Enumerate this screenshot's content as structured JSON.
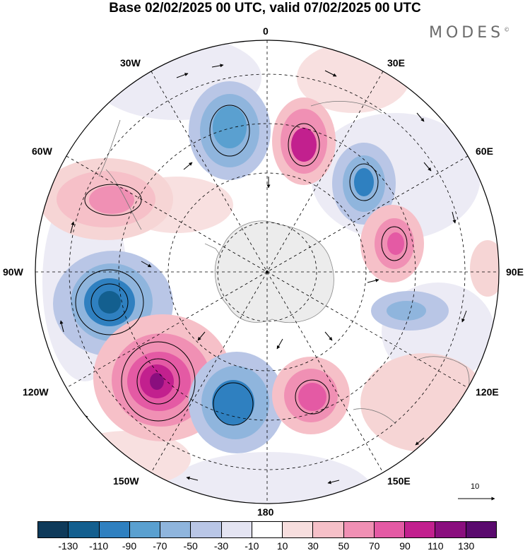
{
  "title": "Base 02/02/2025 00 UTC, valid 07/02/2025 00 UTC",
  "brand": "MODES",
  "brand_mark": "©",
  "longitude_labels": {
    "lon_0": "0",
    "lon_30e": "30E",
    "lon_60e": "60E",
    "lon_90e": "90E",
    "lon_120e": "120E",
    "lon_150e": "150E",
    "lon_180": "180",
    "lon_150w": "150W",
    "lon_120w": "120W",
    "lon_90w": "90W",
    "lon_60w": "60W",
    "lon_30w": "30W"
  },
  "reference_vector": {
    "label": "10"
  },
  "colorbar": {
    "ticks": [
      "-130",
      "-110",
      "-90",
      "-70",
      "-50",
      "-30",
      "-10",
      "10",
      "30",
      "50",
      "70",
      "90",
      "110",
      "130"
    ],
    "colors": [
      "#0e3a5a",
      "#135f8f",
      "#2f80c0",
      "#5aa0d0",
      "#8fb5dd",
      "#b9c6e6",
      "#e4e4f2",
      "#ffffff",
      "#f7dede",
      "#f6c0c8",
      "#f090b4",
      "#e45aa4",
      "#c2208e",
      "#8a0e7e",
      "#5a0a6e"
    ]
  }
}
